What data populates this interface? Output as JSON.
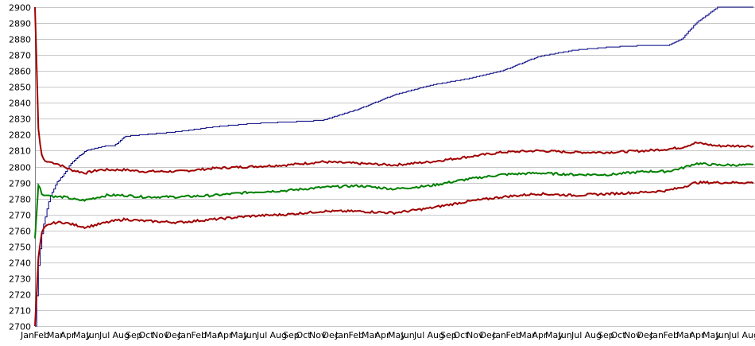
{
  "chart_data": {
    "type": "line",
    "title": "",
    "xlabel": "",
    "ylabel": "",
    "ylim": [
      2700,
      2900
    ],
    "yticks": [
      2700,
      2710,
      2720,
      2730,
      2740,
      2750,
      2760,
      2770,
      2780,
      2790,
      2800,
      2810,
      2820,
      2830,
      2840,
      2850,
      2860,
      2870,
      2880,
      2890,
      2900
    ],
    "grid": true,
    "legend": "none",
    "x_tick_labels": [
      "Jan",
      "Feb",
      "Mar",
      "Apr",
      "May",
      "Jun",
      "Jul",
      "Aug",
      "Sep",
      "Oct",
      "Nov",
      "Dec"
    ],
    "x_tick_count": 56,
    "x": [
      0,
      0.005,
      0.01,
      0.015,
      0.02,
      0.03,
      0.04,
      0.05,
      0.06,
      0.07,
      0.08,
      0.09,
      0.1,
      0.11,
      0.125,
      0.15,
      0.2,
      0.25,
      0.3,
      0.35,
      0.4,
      0.45,
      0.5,
      0.55,
      0.6,
      0.65,
      0.7,
      0.75,
      0.8,
      0.85,
      0.88,
      0.9,
      0.92,
      0.95,
      1.0
    ],
    "series": [
      {
        "color": "#000080",
        "values": [
          2700,
          2740,
          2760,
          2770,
          2780,
          2790,
          2795,
          2802,
          2806,
          2810,
          2811,
          2812,
          2813,
          2813,
          2819,
          2820,
          2822,
          2825,
          2827,
          2828,
          2829,
          2836,
          2845,
          2851,
          2855,
          2860,
          2869,
          2873,
          2875,
          2876,
          2876,
          2880,
          2890,
          2900,
          2900
        ]
      },
      {
        "color": "#a00000",
        "values": [
          2900,
          2820,
          2806,
          2803,
          2803,
          2802,
          2800,
          2798,
          2797,
          2796,
          2797,
          2798,
          2798,
          2798,
          2798,
          2797,
          2797,
          2799,
          2800,
          2801,
          2803,
          2802,
          2801,
          2803,
          2806,
          2809,
          2810,
          2809,
          2809,
          2810,
          2811,
          2812,
          2815,
          2813,
          2813
        ]
      },
      {
        "color": "#008000",
        "values": [
          2755,
          2790,
          2782,
          2782,
          2782,
          2781,
          2781,
          2780,
          2779,
          2779,
          2780,
          2781,
          2782,
          2782,
          2782,
          2781,
          2781,
          2782,
          2784,
          2785,
          2787,
          2788,
          2786,
          2788,
          2792,
          2795,
          2796,
          2795,
          2795,
          2797,
          2797,
          2799,
          2802,
          2801,
          2801
        ]
      },
      {
        "color": "#a00000",
        "values": [
          2700,
          2745,
          2760,
          2763,
          2764,
          2765,
          2765,
          2764,
          2763,
          2762,
          2763,
          2764,
          2765,
          2766,
          2767,
          2766,
          2765,
          2767,
          2769,
          2770,
          2772,
          2772,
          2771,
          2774,
          2778,
          2781,
          2783,
          2782,
          2783,
          2784,
          2785,
          2787,
          2790,
          2790,
          2790
        ]
      }
    ]
  }
}
